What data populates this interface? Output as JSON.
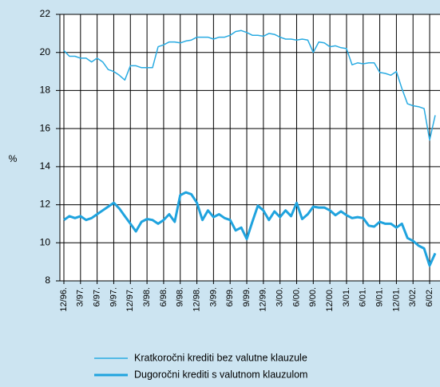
{
  "chart_data": {
    "type": "line",
    "ylabel": "%",
    "categories": [
      "12/96.",
      null,
      null,
      "3/97.",
      null,
      null,
      "6/97.",
      null,
      null,
      "9/97.",
      null,
      null,
      "12/97.",
      null,
      null,
      "3/98.",
      null,
      null,
      "6/98.",
      null,
      null,
      "9/98.",
      null,
      null,
      "12/98.",
      null,
      null,
      "3/99.",
      null,
      null,
      "6/99.",
      null,
      null,
      "9/99.",
      null,
      null,
      "12/99.",
      null,
      null,
      "3/00.",
      null,
      null,
      "6/00.",
      null,
      null,
      "9/00.",
      null,
      null,
      "12/00.",
      null,
      null,
      "3/01.",
      null,
      null,
      "6/01.",
      null,
      null,
      "9/01.",
      null,
      null,
      "12/01.",
      null,
      null,
      "3/02.",
      null,
      null,
      "6/02.",
      null
    ],
    "series": [
      {
        "name": "Kratkoročni krediti bez valutne klauzule",
        "color": "#29abe2",
        "values": [
          20.1,
          19.8,
          19.8,
          19.7,
          19.7,
          19.5,
          19.7,
          19.5,
          19.1,
          19.0,
          18.8,
          18.55,
          19.3,
          19.3,
          19.2,
          19.2,
          19.2,
          20.3,
          20.4,
          20.55,
          20.55,
          20.5,
          20.6,
          20.65,
          20.8,
          20.8,
          20.8,
          20.7,
          20.8,
          20.8,
          20.9,
          21.1,
          21.15,
          21.05,
          20.9,
          20.9,
          20.85,
          21.0,
          20.95,
          20.8,
          20.7,
          20.7,
          20.65,
          20.7,
          20.65,
          20.0,
          20.55,
          20.5,
          20.3,
          20.35,
          20.25,
          20.2,
          19.35,
          19.45,
          19.4,
          19.45,
          19.45,
          18.95,
          18.9,
          18.8,
          19.0,
          18.1,
          17.3,
          17.2,
          17.15,
          17.05,
          15.4,
          16.7
        ]
      },
      {
        "name": "Dugoročni krediti s valutnom klauzulom",
        "color": "#1fa3de",
        "values": [
          11.2,
          11.4,
          11.3,
          11.4,
          11.2,
          11.3,
          11.5,
          11.7,
          11.9,
          12.1,
          11.8,
          11.4,
          11.0,
          10.6,
          11.1,
          11.25,
          11.2,
          11.0,
          11.2,
          11.5,
          11.1,
          12.5,
          12.65,
          12.55,
          12.1,
          11.2,
          11.7,
          11.35,
          11.5,
          11.3,
          11.2,
          10.65,
          10.8,
          10.2,
          11.1,
          11.95,
          11.7,
          11.2,
          11.65,
          11.35,
          11.7,
          11.4,
          12.1,
          11.25,
          11.5,
          11.9,
          11.85,
          11.85,
          11.7,
          11.45,
          11.65,
          11.45,
          11.3,
          11.35,
          11.3,
          10.9,
          10.85,
          11.1,
          11.0,
          11.0,
          10.8,
          11.0,
          10.25,
          10.1,
          9.85,
          9.7,
          8.8,
          9.45
        ]
      }
    ],
    "ylim": [
      8,
      22
    ],
    "yticks": [
      8,
      10,
      12,
      14,
      16,
      18,
      20,
      22
    ],
    "grid": true
  }
}
